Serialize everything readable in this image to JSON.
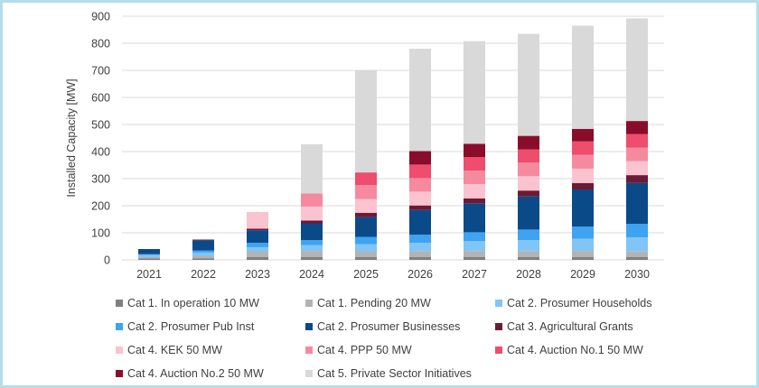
{
  "chart_data": {
    "type": "bar",
    "stacked": true,
    "ylabel": "Installed Capacity [MW]",
    "xlabel": "",
    "ylim": [
      0,
      900
    ],
    "yticks": [
      0,
      100,
      200,
      300,
      400,
      500,
      600,
      700,
      800,
      900
    ],
    "grid": true,
    "legend_position": "bottom",
    "categories": [
      "2021",
      "2022",
      "2023",
      "2024",
      "2025",
      "2026",
      "2027",
      "2028",
      "2029",
      "2030"
    ],
    "series": [
      {
        "name": "Cat 1. In operation 10 MW",
        "color": "#7f7f7f",
        "values": [
          5,
          5,
          10,
          10,
          10,
          10,
          10,
          10,
          10,
          10
        ]
      },
      {
        "name": "Cat 1. Pending 20 MW",
        "color": "#b3b3b3",
        "values": [
          5,
          10,
          20,
          23,
          20,
          22,
          22,
          22,
          23,
          21
        ]
      },
      {
        "name": "Cat 2. Prosumer Households",
        "color": "#80c5f5",
        "values": [
          8,
          12,
          17,
          22,
          28,
          31,
          37,
          41,
          45,
          52
        ]
      },
      {
        "name": "Cat 2. Prosumer Pub Inst",
        "color": "#3ea3f0",
        "values": [
          3,
          8,
          16,
          18,
          27,
          30,
          33,
          39,
          45,
          50
        ]
      },
      {
        "name": "Cat 2. Prosumer Businesses",
        "color": "#0b4a89",
        "values": [
          19,
          37,
          46,
          62,
          73,
          91,
          107,
          122,
          137,
          151
        ]
      },
      {
        "name": "Cat 3. Agricultural Grants",
        "color": "#6c1a36",
        "values": [
          0,
          3,
          6,
          10,
          16,
          17,
          18,
          22,
          24,
          29
        ]
      },
      {
        "name": "Cat 4. KEK 50 MW",
        "color": "#f9c3d0",
        "values": [
          0,
          0,
          62,
          52,
          51,
          51,
          53,
          53,
          53,
          52
        ]
      },
      {
        "name": "Cat 4. PPP 50 MW",
        "color": "#f58a9f",
        "values": [
          0,
          0,
          0,
          48,
          51,
          50,
          50,
          51,
          51,
          50
        ]
      },
      {
        "name": "Cat 4. Auction No.1 50 MW",
        "color": "#ee4d6d",
        "values": [
          0,
          0,
          0,
          0,
          47,
          50,
          50,
          48,
          50,
          50
        ]
      },
      {
        "name": "Cat 4. Auction No.2 50 MW",
        "color": "#8a0c2b",
        "values": [
          0,
          0,
          0,
          0,
          0,
          50,
          49,
          50,
          46,
          48
        ]
      },
      {
        "name": "Cat 5. Private Sector Initiatives",
        "color": "#d9d9d9",
        "values": [
          0,
          0,
          0,
          182,
          377,
          378,
          379,
          377,
          381,
          379
        ]
      }
    ]
  }
}
